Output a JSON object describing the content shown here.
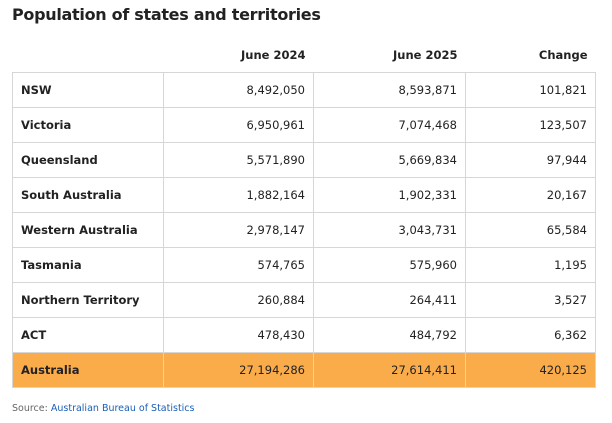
{
  "title": "Population of states and territories",
  "table": {
    "header": [
      "June 2024",
      "June 2025",
      "Change"
    ],
    "rows": [
      [
        "NSW",
        "8,492,050",
        "8,593,871",
        "101,821"
      ],
      [
        "Victoria",
        "6,950,961",
        "7,074,468",
        "123,507"
      ],
      [
        "Queensland",
        "5,571,890",
        "5,669,834",
        "97,944"
      ],
      [
        "South Australia",
        "1,882,164",
        "1,902,331",
        "20,167"
      ],
      [
        "Western Australia",
        "2,978,147",
        "3,043,731",
        "65,584"
      ],
      [
        "Tasmania",
        "574,765",
        "575,960",
        "1,195"
      ],
      [
        "Northern Territory",
        "260,884",
        "264,411",
        "3,527"
      ],
      [
        "ACT",
        "478,430",
        "484,792",
        "6,362"
      ]
    ],
    "total": [
      "Australia",
      "27,194,286",
      "27,614,411",
      "420,125"
    ]
  },
  "source": {
    "label": "Source:",
    "link": "Australian Bureau of Statistics"
  }
}
